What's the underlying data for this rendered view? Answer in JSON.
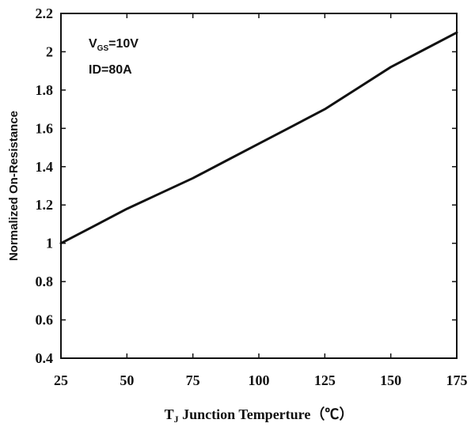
{
  "chart_data": {
    "type": "line",
    "title": "",
    "xlabel": {
      "prefix": "T",
      "subscript": "J",
      "rest": " Junction Temperture（℃）"
    },
    "ylabel": "Normalized On-Resistance",
    "xlim": [
      25,
      175
    ],
    "ylim": [
      0.4,
      2.2
    ],
    "xticks": [
      25,
      50,
      75,
      100,
      125,
      150,
      175
    ],
    "yticks": [
      0.4,
      0.6,
      0.8,
      1,
      1.2,
      1.4,
      1.6,
      1.8,
      2,
      2.2
    ],
    "grid": false,
    "annotations": [
      {
        "main": "V",
        "sub": "GS",
        "rest": "=10V"
      },
      {
        "main": "ID=80A",
        "sub": "",
        "rest": ""
      }
    ],
    "series": [
      {
        "x": [
          25,
          37.5,
          50,
          62.5,
          75,
          87.5,
          100,
          112.5,
          125,
          137.5,
          150,
          162.5,
          175
        ],
        "values": [
          1.0,
          1.09,
          1.18,
          1.26,
          1.34,
          1.43,
          1.52,
          1.61,
          1.7,
          1.81,
          1.92,
          2.01,
          2.1
        ]
      }
    ],
    "colors": {
      "line": "#111111",
      "axis": "#111111"
    }
  }
}
